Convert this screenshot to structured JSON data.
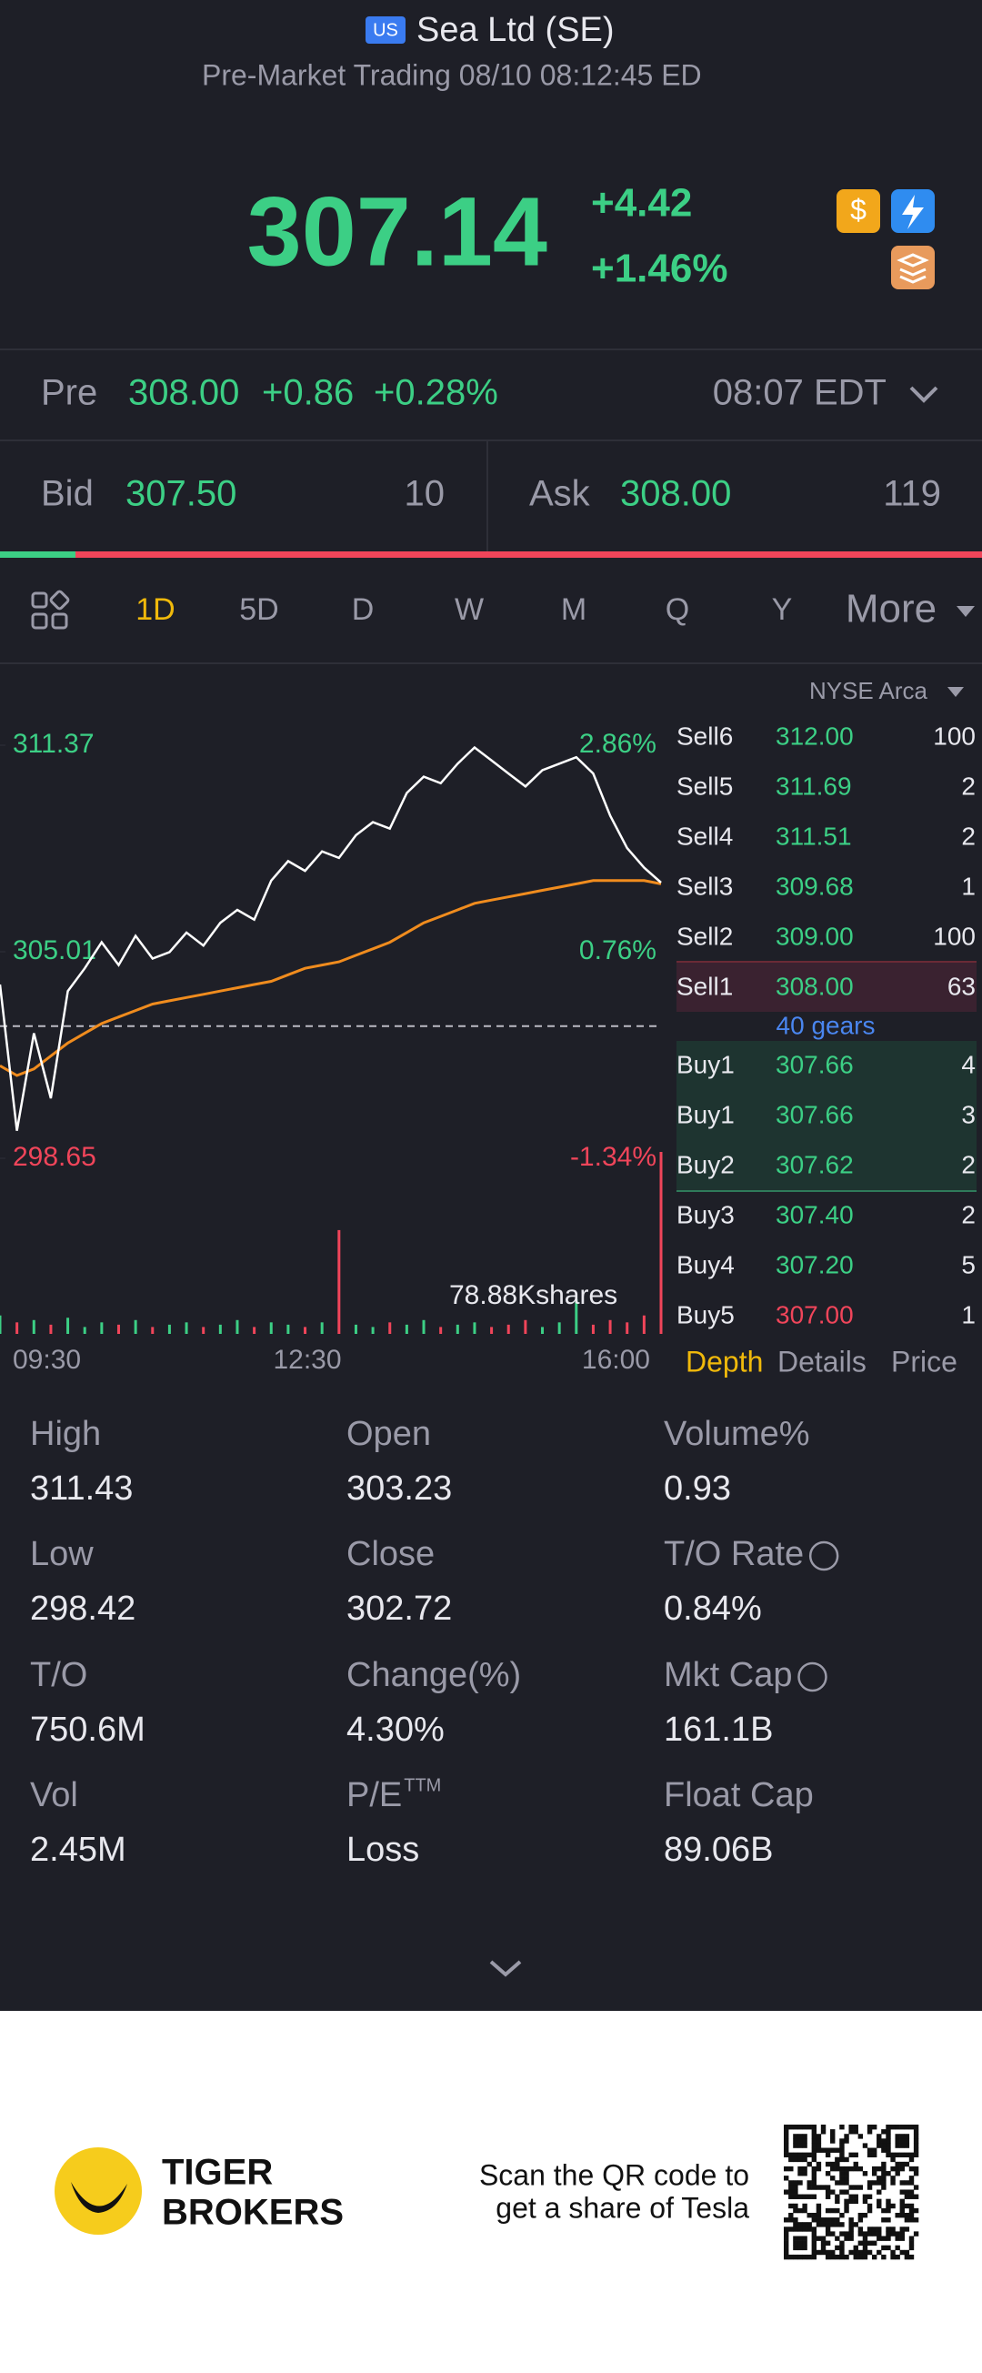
{
  "header": {
    "badge": "US",
    "name": "Sea Ltd (SE)",
    "status": "Pre-Market Trading 08/10 08:12:45 ED"
  },
  "quote": {
    "price": "307.14",
    "change": "+4.42",
    "change_pct": "+1.46%"
  },
  "pre": {
    "label": "Pre",
    "price": "308.00",
    "change": "+0.86",
    "change_pct": "+0.28%",
    "time": "08:07 EDT"
  },
  "bid": {
    "label": "Bid",
    "price": "307.50",
    "size": "10"
  },
  "ask": {
    "label": "Ask",
    "price": "308.00",
    "size": "119"
  },
  "tabs": [
    "1D",
    "5D",
    "D",
    "W",
    "M",
    "Q",
    "Y",
    "More"
  ],
  "exchange": "NYSE Arca",
  "chart_data": {
    "type": "line",
    "ylim": [
      298.65,
      311.37
    ],
    "yticks": [
      311.37,
      305.01,
      298.65
    ],
    "pct_labels": [
      "2.86%",
      "0.76%",
      "-1.34%"
    ],
    "prev_close": 302.72,
    "x_labels": [
      "09:30",
      "12:30",
      "16:00"
    ],
    "series": [
      {
        "name": "Price",
        "color": "#ffffff",
        "values": [
          304.0,
          299.5,
          302.5,
          300.5,
          303.8,
          304.5,
          305.3,
          304.6,
          305.5,
          304.8,
          305.0,
          305.6,
          305.2,
          305.9,
          306.3,
          306.0,
          307.2,
          307.8,
          307.5,
          308.1,
          307.9,
          308.6,
          309.0,
          308.8,
          309.9,
          310.4,
          310.2,
          310.8,
          311.3,
          310.9,
          310.5,
          310.1,
          310.6,
          310.8,
          311.0,
          310.5,
          309.2,
          308.2,
          307.6,
          307.14
        ]
      },
      {
        "name": "Average",
        "color": "#f08c1e",
        "values": [
          301.5,
          301.2,
          301.4,
          301.8,
          302.2,
          302.5,
          302.8,
          303.0,
          303.2,
          303.4,
          303.5,
          303.6,
          303.7,
          303.8,
          303.9,
          304.0,
          304.1,
          304.3,
          304.5,
          304.6,
          304.7,
          304.9,
          305.1,
          305.3,
          305.6,
          305.9,
          306.1,
          306.3,
          306.5,
          306.6,
          306.7,
          306.8,
          306.9,
          307.0,
          307.1,
          307.2,
          307.2,
          307.2,
          307.2,
          307.1
        ]
      }
    ],
    "volume": {
      "label": "78.88Kshares",
      "max": 78.88,
      "values": [
        8,
        5,
        6,
        4,
        7,
        3,
        5,
        4,
        6,
        3,
        4,
        5,
        3,
        4,
        6,
        3,
        5,
        4,
        3,
        5,
        45,
        4,
        3,
        5,
        4,
        6,
        3,
        4,
        5,
        3,
        4,
        6,
        3,
        5,
        15,
        4,
        6,
        5,
        8,
        78.88
      ]
    }
  },
  "order_book": {
    "sell": [
      [
        "Sell6",
        "312.00",
        "100"
      ],
      [
        "Sell5",
        "311.69",
        "2"
      ],
      [
        "Sell4",
        "311.51",
        "2"
      ],
      [
        "Sell3",
        "309.68",
        "1"
      ],
      [
        "Sell2",
        "309.00",
        "100"
      ],
      [
        "Sell1",
        "308.00",
        "63"
      ]
    ],
    "gears": "40 gears",
    "buy": [
      [
        "Buy1",
        "307.66",
        "4"
      ],
      [
        "Buy1",
        "307.66",
        "3"
      ],
      [
        "Buy2",
        "307.62",
        "2"
      ],
      [
        "Buy3",
        "307.40",
        "2"
      ],
      [
        "Buy4",
        "307.20",
        "5"
      ],
      [
        "Buy5",
        "307.00",
        "1"
      ]
    ],
    "tabs": [
      "Depth",
      "Details",
      "Price"
    ]
  },
  "stats": [
    {
      "label": "High",
      "value": "311.43"
    },
    {
      "label": "Open",
      "value": "303.23"
    },
    {
      "label": "Volume%",
      "value": "0.93"
    },
    {
      "label": "Low",
      "value": "298.42"
    },
    {
      "label": "Close",
      "value": "302.72"
    },
    {
      "label": "T/O Rate",
      "value": "0.84%"
    },
    {
      "label": "T/O",
      "value": "750.6M"
    },
    {
      "label": "Change(%)",
      "value": "4.30%"
    },
    {
      "label": "Mkt Cap",
      "value": "161.1B"
    },
    {
      "label": "Vol",
      "value": "2.45M"
    },
    {
      "label": "P/E",
      "sup": "TTM",
      "value": "Loss"
    },
    {
      "label": "Float Cap",
      "value": "89.06B"
    }
  ],
  "footer": {
    "brand": [
      "TIGER",
      "BROKERS"
    ],
    "cta": [
      "Scan the QR code to",
      "get a share of Tesla"
    ]
  }
}
